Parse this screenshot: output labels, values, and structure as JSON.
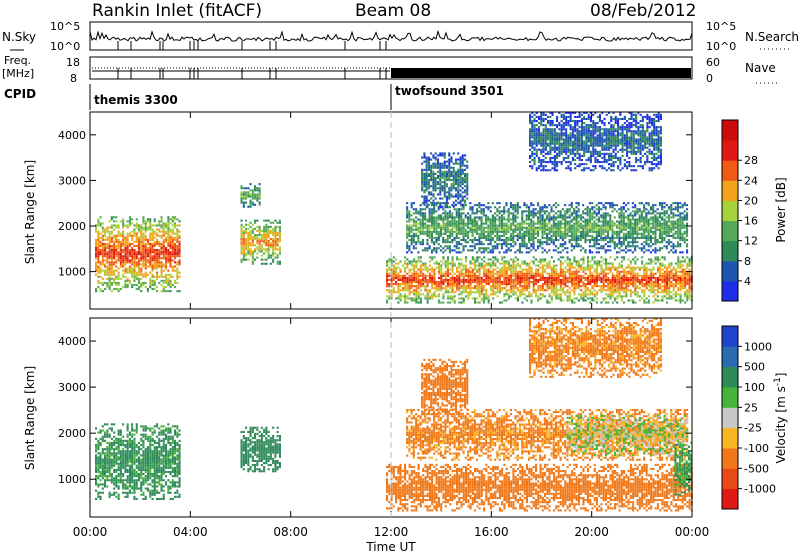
{
  "header": {
    "title": "Rankin Inlet (fitACF)",
    "beam": "Beam 08",
    "date": "08/Feb/2012"
  },
  "top_panels": {
    "nsky_label": "N.Sky",
    "nsky_ticks": [
      "10^5",
      "10^0"
    ],
    "nsearch_label": "N.Search",
    "nsearch_ticks": [
      "10^5",
      "10^0"
    ],
    "freq_label_1": "Freq.",
    "freq_label_2": "[MHz]",
    "freq_ticks": [
      "18",
      "8"
    ],
    "nave_label": "Nave",
    "nave_ticks": [
      "60",
      "0"
    ],
    "cpid_label": "CPID",
    "cpid_segments": [
      {
        "label": "themis 3300",
        "start_hour": 0,
        "end_hour": 11.8
      },
      {
        "label": "twofsound 3501",
        "start_hour": 11.8,
        "end_hour": 24
      }
    ]
  },
  "chart_data": [
    {
      "type": "heatmap",
      "quantity": "power",
      "ylabel": "Slant Range [km]",
      "ylim": [
        180,
        4500
      ],
      "yticks": [
        "1000",
        "2000",
        "3000",
        "4000"
      ],
      "xlim": [
        0,
        24
      ],
      "colorbar_label": "Power [dB]",
      "colorbar_ticks": [
        "4",
        "8",
        "12",
        "16",
        "20",
        "24",
        "28"
      ],
      "colorbar_colors": [
        "#1e2ee8",
        "#1f55b0",
        "#2f8a5a",
        "#55a85a",
        "#a8d23a",
        "#f4a21a",
        "#f05a14",
        "#e01a12",
        "#cc0c0c"
      ],
      "regions": [
        {
          "t0": 0.2,
          "t1": 3.6,
          "r0": 550,
          "r1": 2200,
          "peak_dB": 29
        },
        {
          "t0": 6.0,
          "t1": 7.6,
          "r0": 1150,
          "r1": 2100,
          "peak_dB": 24
        },
        {
          "t0": 6.0,
          "t1": 6.8,
          "r0": 2400,
          "r1": 2900,
          "peak_dB": 16
        },
        {
          "t0": 11.8,
          "t1": 24.0,
          "r0": 300,
          "r1": 1300,
          "peak_dB": 28
        },
        {
          "t0": 12.6,
          "t1": 23.8,
          "r0": 1400,
          "r1": 2500,
          "peak_dB": 14
        },
        {
          "t0": 13.2,
          "t1": 15.0,
          "r0": 2400,
          "r1": 3600,
          "peak_dB": 10
        },
        {
          "t0": 17.5,
          "t1": 22.8,
          "r0": 3200,
          "r1": 4500,
          "peak_dB": 8
        }
      ]
    },
    {
      "type": "heatmap",
      "quantity": "velocity",
      "ylabel": "Slant Range [km]",
      "xlabel": "Time UT",
      "ylim": [
        180,
        4500
      ],
      "yticks": [
        "1000",
        "2000",
        "3000",
        "4000"
      ],
      "xlim": [
        0,
        24
      ],
      "xticks": [
        "00:00",
        "04:00",
        "08:00",
        "12:00",
        "16:00",
        "20:00",
        "00:00"
      ],
      "colorbar_label": "Velocity [m s",
      "colorbar_unit_sup": "-1",
      "colorbar_unit_close": "]",
      "colorbar_ticks": [
        "1000",
        "500",
        "100",
        "25",
        "-25",
        "-100",
        "-500",
        "-1000"
      ],
      "colorbar_colors": [
        "#2244cc",
        "#2a6ab0",
        "#2f8a5a",
        "#46b43a",
        "#c8c8c8",
        "#f8b422",
        "#f07818",
        "#e84a16",
        "#e01a12"
      ],
      "regions": [
        {
          "t0": 0.2,
          "t1": 3.6,
          "r0": 550,
          "r1": 2200,
          "velocity": 150
        },
        {
          "t0": 6.0,
          "t1": 7.6,
          "r0": 1150,
          "r1": 2100,
          "velocity": 300
        },
        {
          "t0": 11.8,
          "t1": 24.0,
          "r0": 300,
          "r1": 1300,
          "velocity": -300
        },
        {
          "t0": 12.6,
          "t1": 23.8,
          "r0": 1400,
          "r1": 2500,
          "velocity": -150
        },
        {
          "t0": 13.2,
          "t1": 15.0,
          "r0": 2400,
          "r1": 3600,
          "velocity": -200
        },
        {
          "t0": 17.5,
          "t1": 22.8,
          "r0": 3200,
          "r1": 4500,
          "velocity": -150
        },
        {
          "t0": 19.0,
          "t1": 23.8,
          "r0": 1500,
          "r1": 2400,
          "velocity": 0
        },
        {
          "t0": 23.3,
          "t1": 24.0,
          "r0": 600,
          "r1": 1800,
          "velocity": 120
        }
      ]
    }
  ]
}
